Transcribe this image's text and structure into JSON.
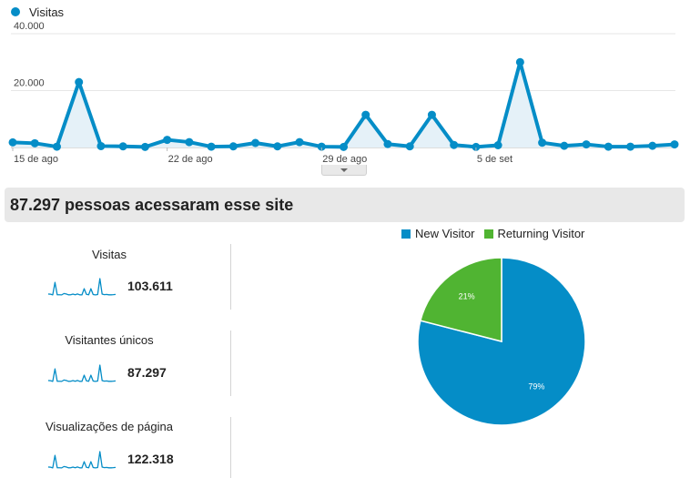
{
  "colors": {
    "line": "#058dc7",
    "area": "#e5f1f8",
    "new_visitor": "#058dc7",
    "returning_visitor": "#50b432"
  },
  "chart_data": [
    {
      "type": "line",
      "series": [
        {
          "name": "Visitas",
          "values": [
            1800,
            1500,
            300,
            23000,
            500,
            400,
            200,
            2700,
            1900,
            300,
            400,
            1600,
            400,
            1900,
            300,
            200,
            11500,
            1200,
            400,
            11500,
            900,
            200,
            800,
            30000,
            1700,
            600,
            1100,
            300,
            300,
            600,
            1100
          ]
        }
      ],
      "x_tick_labels": [
        "15 de ago",
        "22 de ago",
        "29 de ago",
        "5 de set"
      ],
      "x_tick_indices": [
        0,
        7,
        14,
        21
      ],
      "y_tick_labels": [
        "40.000",
        "20.000"
      ],
      "y_ticks": [
        40000,
        20000
      ],
      "ylim": [
        0,
        40000
      ],
      "grid": true,
      "legend": "top-left"
    },
    {
      "type": "pie",
      "labels": [
        "New Visitor",
        "Returning Visitor"
      ],
      "values": [
        79,
        21
      ],
      "data_labels": [
        "79%",
        "21%"
      ],
      "legend": "top"
    }
  ],
  "banner": {
    "text": "87.297 pessoas acessaram esse site"
  },
  "metrics": [
    {
      "label": "Visitas",
      "value": "103.611"
    },
    {
      "label": "Visitantes únicos",
      "value": "87.297"
    },
    {
      "label": "Visualizações de página",
      "value": "122.318"
    }
  ]
}
